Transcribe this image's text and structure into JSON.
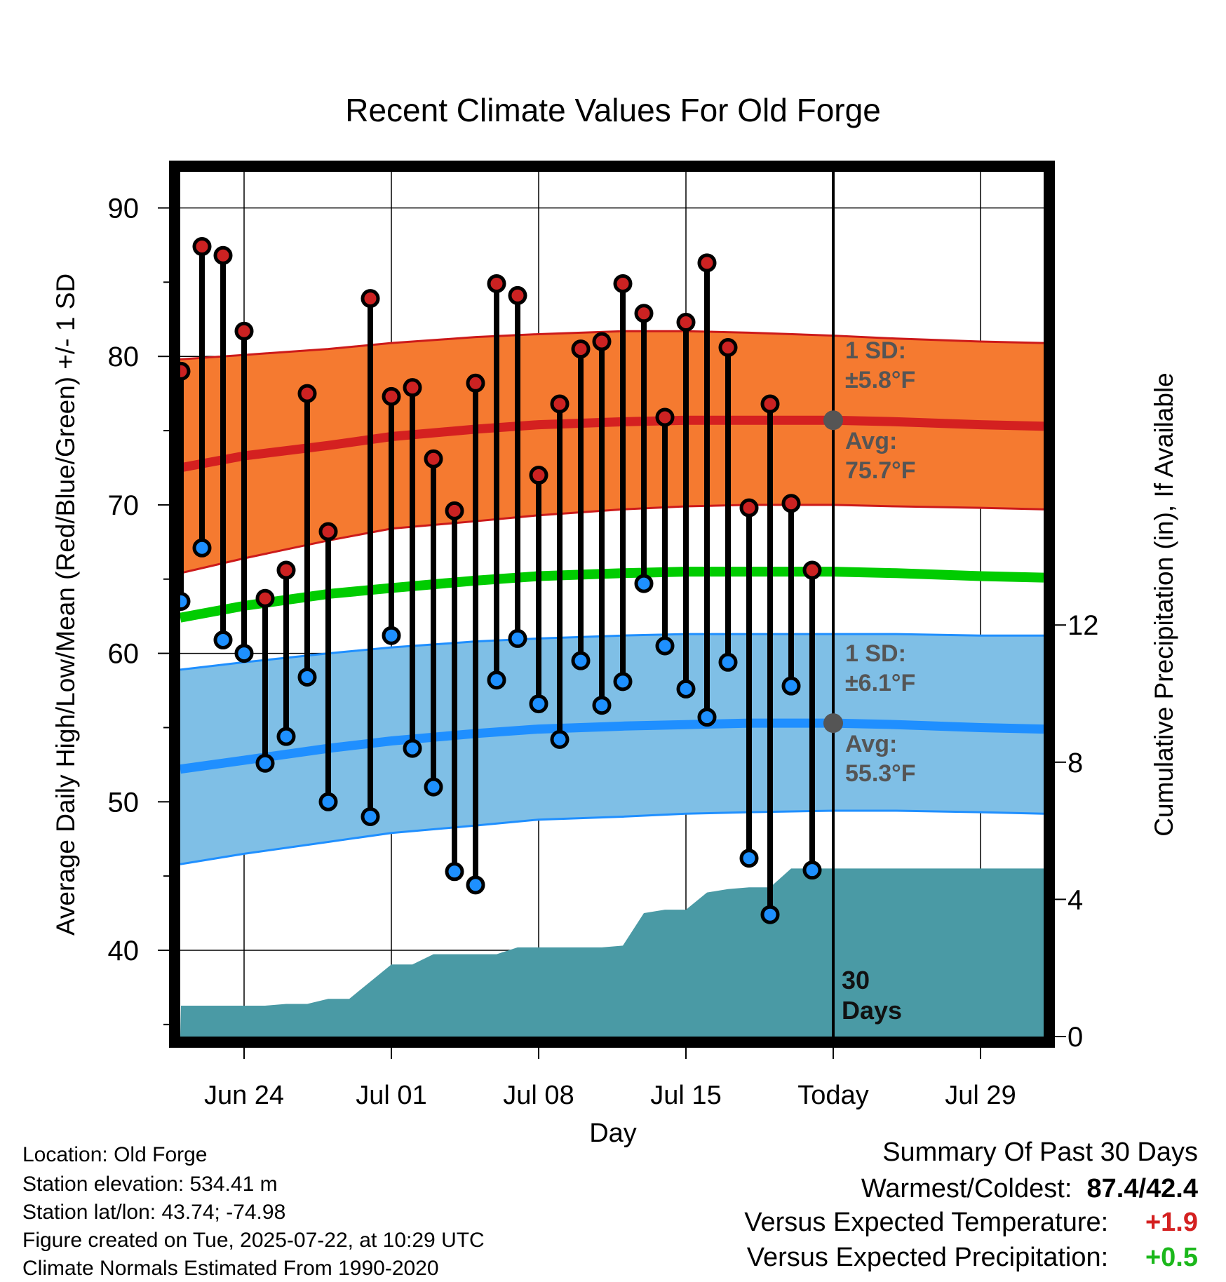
{
  "chart_data": {
    "type": "line",
    "title": "Recent Climate Values For Old Forge",
    "xlabel": "Day",
    "ylabel": "Average Daily High/Low/Mean (Red/Blue/Green) +/- 1 SD",
    "y2label": "Cumulative Precipitation (in), If Available",
    "ylim": [
      35,
      92
    ],
    "y2lim": [
      0,
      18
    ],
    "yticks": [
      40,
      50,
      60,
      70,
      80,
      90
    ],
    "y2ticks": [
      0,
      4,
      8,
      12
    ],
    "x_tick_labels": [
      "Jun 24",
      "Jul 01",
      "Jul 08",
      "Jul 15",
      "Today",
      "Jul 29"
    ],
    "today_label": "30 Days",
    "grid": true,
    "dates": [
      "Jun 21",
      "Jun 22",
      "Jun 23",
      "Jun 24",
      "Jun 25",
      "Jun 26",
      "Jun 27",
      "Jun 28",
      "Jun 29",
      "Jun 30",
      "Jul 01",
      "Jul 02",
      "Jul 03",
      "Jul 04",
      "Jul 05",
      "Jul 06",
      "Jul 07",
      "Jul 08",
      "Jul 09",
      "Jul 10",
      "Jul 11",
      "Jul 12",
      "Jul 13",
      "Jul 14",
      "Jul 15",
      "Jul 16",
      "Jul 17",
      "Jul 18",
      "Jul 19",
      "Jul 20",
      "Jul 21"
    ],
    "daily_high": [
      79.0,
      87.4,
      86.8,
      81.7,
      63.7,
      65.6,
      77.5,
      68.2,
      null,
      83.9,
      77.3,
      77.9,
      73.1,
      69.6,
      78.2,
      84.9,
      84.1,
      72.0,
      76.8,
      80.5,
      81.0,
      84.9,
      82.9,
      75.9,
      82.3,
      86.3,
      80.6,
      69.8,
      76.8,
      70.1,
      65.6
    ],
    "daily_low": [
      63.5,
      67.1,
      60.9,
      60.0,
      52.6,
      54.4,
      58.4,
      50.0,
      null,
      49.0,
      61.2,
      53.6,
      51.0,
      45.3,
      44.4,
      58.2,
      61.0,
      56.6,
      54.2,
      59.5,
      56.5,
      58.1,
      64.7,
      60.5,
      57.6,
      55.7,
      59.4,
      46.2,
      42.4,
      57.8,
      45.4
    ],
    "normal_high": {
      "dates": [
        "Jun 21",
        "Jun 24",
        "Jun 28",
        "Jul 01",
        "Jul 05",
        "Jul 08",
        "Jul 12",
        "Jul 15",
        "Jul 18",
        "Jul 22",
        "Jul 25",
        "Jul 29",
        "Jul 31"
      ],
      "avg": [
        72.5,
        73.3,
        74.0,
        74.6,
        75.1,
        75.4,
        75.6,
        75.7,
        75.7,
        75.7,
        75.6,
        75.4,
        75.3
      ],
      "sd_upper": [
        79.8,
        80.1,
        80.5,
        80.9,
        81.3,
        81.5,
        81.7,
        81.7,
        81.6,
        81.4,
        81.2,
        81.0,
        80.9
      ],
      "sd_lower": [
        65.4,
        66.4,
        67.6,
        68.4,
        68.9,
        69.3,
        69.7,
        69.9,
        70.0,
        70.0,
        69.9,
        69.8,
        69.7
      ]
    },
    "normal_mean": {
      "dates": [
        "Jun 21",
        "Jun 24",
        "Jun 28",
        "Jul 01",
        "Jul 05",
        "Jul 08",
        "Jul 12",
        "Jul 15",
        "Jul 18",
        "Jul 22",
        "Jul 25",
        "Jul 29",
        "Jul 31"
      ],
      "avg": [
        62.4,
        63.2,
        64.0,
        64.4,
        64.9,
        65.2,
        65.4,
        65.5,
        65.5,
        65.5,
        65.4,
        65.2,
        65.1
      ]
    },
    "normal_low": {
      "dates": [
        "Jun 21",
        "Jun 24",
        "Jun 28",
        "Jul 01",
        "Jul 05",
        "Jul 08",
        "Jul 12",
        "Jul 15",
        "Jul 18",
        "Jul 22",
        "Jul 25",
        "Jul 29",
        "Jul 31"
      ],
      "avg": [
        52.2,
        52.8,
        53.6,
        54.1,
        54.6,
        54.9,
        55.1,
        55.2,
        55.3,
        55.3,
        55.2,
        55.0,
        54.9
      ],
      "sd_upper": [
        58.9,
        59.4,
        60.0,
        60.4,
        60.8,
        61.0,
        61.2,
        61.3,
        61.3,
        61.3,
        61.3,
        61.2,
        61.2
      ],
      "sd_lower": [
        45.8,
        46.5,
        47.3,
        47.9,
        48.4,
        48.8,
        49.0,
        49.2,
        49.3,
        49.4,
        49.4,
        49.3,
        49.2
      ]
    },
    "precip_cumulative": {
      "dates": [
        "Jun 20",
        "Jun 21",
        "Jun 22",
        "Jun 23",
        "Jun 24",
        "Jun 25",
        "Jun 26",
        "Jun 27",
        "Jun 28",
        "Jun 29",
        "Jun 30",
        "Jul 01",
        "Jul 02",
        "Jul 03",
        "Jul 04",
        "Jul 05",
        "Jul 06",
        "Jul 07",
        "Jul 08",
        "Jul 09",
        "Jul 10",
        "Jul 11",
        "Jul 12",
        "Jul 13",
        "Jul 14",
        "Jul 15",
        "Jul 16",
        "Jul 17",
        "Jul 18",
        "Jul 19",
        "Jul 20",
        "Jul 21",
        "Jul 22",
        "Jul 31"
      ],
      "values": [
        0.0,
        0.9,
        0.9,
        0.9,
        0.9,
        0.9,
        0.95,
        0.95,
        1.1,
        1.1,
        1.6,
        2.1,
        2.1,
        2.4,
        2.4,
        2.4,
        2.4,
        2.6,
        2.6,
        2.6,
        2.6,
        2.6,
        2.65,
        3.6,
        3.7,
        3.7,
        4.2,
        4.3,
        4.35,
        4.35,
        4.9,
        4.9,
        4.9,
        4.9
      ]
    },
    "annotations": {
      "high_sd_label": "1 SD:",
      "high_sd_value": "±5.8°F",
      "high_avg_label": "Avg:",
      "high_avg_value": "75.7°F",
      "low_sd_label": "1 SD:",
      "low_sd_value": "±6.1°F",
      "low_avg_label": "Avg:",
      "low_avg_value": "55.3°F"
    },
    "colors": {
      "high_band": "#f57a30",
      "high_avg": "#d42020",
      "high_edge": "#cc1a1a",
      "mean_avg": "#00cc00",
      "low_band": "#7fbfe6",
      "low_avg": "#1f8fff",
      "low_edge": "#1f8fff",
      "precip": "#4a9aa5",
      "high_dot": "#cc2222",
      "low_dot": "#1e90ff",
      "today_dot": "#555555"
    }
  },
  "info": {
    "location": "Location: Old Forge",
    "elevation": "Station elevation: 534.41 m",
    "latlon": "Station lat/lon: 43.74; -74.98",
    "created": "Figure created on Tue, 2025-07-22, at 10:29 UTC",
    "normals": "Climate Normals Estimated From 1990-2020"
  },
  "summary": {
    "title": "Summary Of Past 30 Days",
    "warm_cold_label": "Warmest/Coldest:",
    "warm_cold_value": "87.4/42.4",
    "temp_label": "Versus Expected Temperature:",
    "temp_value": "+1.9",
    "temp_color": "#d42020",
    "precip_label": "Versus Expected Precipitation:",
    "precip_value": "+0.5",
    "precip_color": "#1bb81b"
  }
}
